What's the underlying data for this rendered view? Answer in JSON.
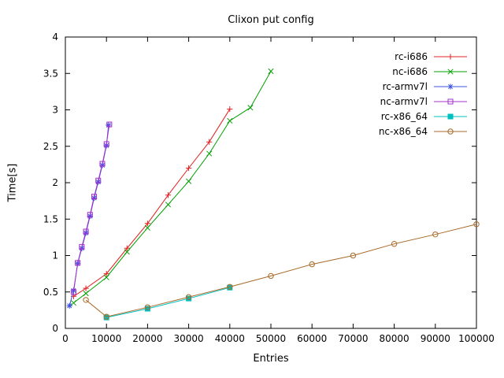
{
  "title": "Clixon put config",
  "chart_data": {
    "type": "line",
    "title": "Clixon put config",
    "xlabel": "Entries",
    "ylabel": "Time[s]",
    "xlim": [
      0,
      100000
    ],
    "ylim": [
      0,
      4
    ],
    "xticks": [
      0,
      10000,
      20000,
      30000,
      40000,
      50000,
      60000,
      70000,
      80000,
      90000,
      100000
    ],
    "yticks": [
      0,
      0.5,
      1,
      1.5,
      2,
      2.5,
      3,
      3.5,
      4
    ],
    "grid": false,
    "legend_position": "top-right",
    "series": [
      {
        "name": "rc-i686",
        "color": "#e02020",
        "marker": "plus",
        "x": [
          2000,
          5000,
          10000,
          15000,
          20000,
          25000,
          30000,
          35000,
          40000
        ],
        "y": [
          0.44,
          0.55,
          0.75,
          1.1,
          1.44,
          1.83,
          2.2,
          2.56,
          3.01
        ]
      },
      {
        "name": "nc-i686",
        "color": "#00a000",
        "marker": "cross",
        "x": [
          2000,
          5000,
          10000,
          15000,
          20000,
          25000,
          30000,
          35000,
          40000,
          45000,
          50000
        ],
        "y": [
          0.35,
          0.48,
          0.7,
          1.05,
          1.38,
          1.7,
          2.02,
          2.4,
          2.85,
          3.03,
          3.53
        ]
      },
      {
        "name": "rc-armv7l",
        "color": "#3a50e0",
        "marker": "asterisk",
        "x": [
          1000,
          2000,
          3000,
          4000,
          5000,
          6000,
          7000,
          8000,
          9000,
          10000,
          10500
        ],
        "y": [
          0.31,
          0.52,
          0.89,
          1.1,
          1.31,
          1.54,
          1.79,
          2.01,
          2.24,
          2.51,
          2.79
        ]
      },
      {
        "name": "nc-armv7l",
        "color": "#a530cc",
        "marker": "square-open",
        "x": [
          2000,
          3000,
          4000,
          5000,
          6000,
          7000,
          8000,
          9000,
          10000,
          10700
        ],
        "y": [
          0.5,
          0.9,
          1.12,
          1.33,
          1.56,
          1.81,
          2.03,
          2.26,
          2.53,
          2.8
        ]
      },
      {
        "name": "rc-x86_64",
        "color": "#00c0c0",
        "marker": "square-filled",
        "x": [
          10000,
          20000,
          30000,
          40000
        ],
        "y": [
          0.15,
          0.27,
          0.41,
          0.56
        ]
      },
      {
        "name": "nc-x86_64",
        "color": "#a86a28",
        "marker": "circle-open",
        "x": [
          5000,
          10000,
          20000,
          30000,
          40000,
          50000,
          60000,
          70000,
          80000,
          90000,
          100000
        ],
        "y": [
          0.39,
          0.16,
          0.29,
          0.43,
          0.57,
          0.72,
          0.88,
          1.0,
          1.16,
          1.29,
          1.43
        ]
      }
    ]
  }
}
